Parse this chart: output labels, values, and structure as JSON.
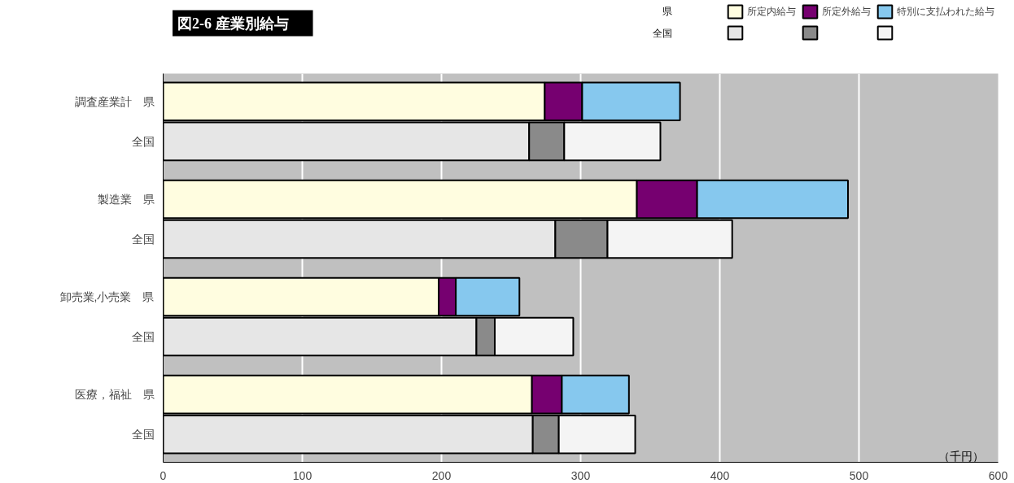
{
  "chart_data": {
    "type": "bar",
    "orientation": "horizontal",
    "stacked": true,
    "title": "図2-6 産業別給与",
    "categories": [
      "調査産業計　県",
      "全国",
      "製造業　県",
      "全国",
      "卸売業,小売業　県",
      "全国",
      "医療，福祉　県",
      "全国"
    ],
    "series": [
      {
        "name": "所定内給与",
        "colors": [
          "#fffde0",
          "#e6e6e6",
          "#fffde0",
          "#e6e6e6",
          "#fffde0",
          "#e6e6e6",
          "#fffde0",
          "#e6e6e6"
        ],
        "values": [
          274.2,
          263.0,
          340.4,
          281.8,
          198.0,
          225.1,
          265.0,
          265.6
        ]
      },
      {
        "name": "所定外給与",
        "colors": [
          "#760070",
          "#8a8a8a",
          "#760070",
          "#8a8a8a",
          "#760070",
          "#8a8a8a",
          "#760070",
          "#8a8a8a"
        ],
        "values": [
          26.9,
          25.2,
          43.3,
          37.5,
          12.3,
          13.2,
          21.5,
          18.7
        ]
      },
      {
        "name": "特別に支払われた給与",
        "colors": [
          "#86c8ee",
          "#f4f4f4",
          "#86c8ee",
          "#f4f4f4",
          "#86c8ee",
          "#f4f4f4",
          "#86c8ee",
          "#f4f4f4"
        ],
        "values": [
          70.3,
          69.1,
          108.4,
          89.6,
          45.7,
          56.4,
          48.2,
          54.9
        ]
      }
    ],
    "xlim": [
      0,
      600
    ],
    "xticks": [
      0,
      100,
      200,
      300,
      400,
      500,
      600
    ],
    "grid": "x",
    "legend": "top right",
    "annotations": [
      "県",
      "全国",
      "（千円）"
    ]
  }
}
